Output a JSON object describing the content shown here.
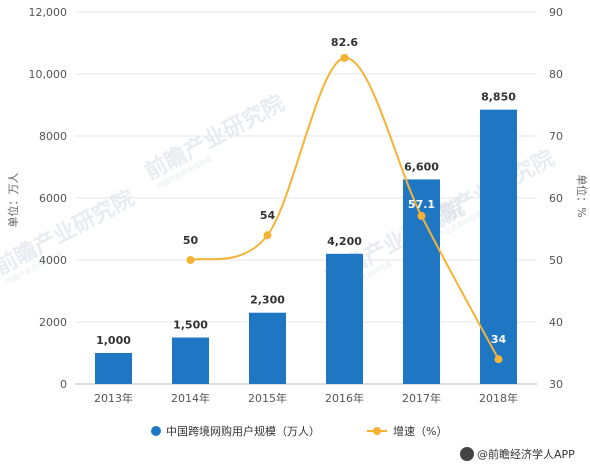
{
  "chart_data": {
    "type": "bar",
    "categories": [
      "2013年",
      "2014年",
      "2015年",
      "2016年",
      "2017年",
      "2018年"
    ],
    "series": [
      {
        "name": "中国跨境网购用户规模（万人）",
        "type": "bar",
        "axis": "left",
        "color": "#1f77c4",
        "values": [
          1000,
          1500,
          2300,
          4200,
          6600,
          8850
        ],
        "labels": [
          "1,000",
          "1,500",
          "2,300",
          "4,200",
          "6,600",
          "8,850"
        ]
      },
      {
        "name": "增速（%）",
        "type": "line",
        "axis": "right",
        "color": "#f5b335",
        "values": [
          null,
          50,
          54,
          82.6,
          57.1,
          34
        ],
        "labels": [
          "",
          "50",
          "54",
          "82.6",
          "57.1",
          "34"
        ]
      }
    ],
    "ylabel": "单位：万人",
    "y2label": "单位：%",
    "ylim": [
      0,
      12000
    ],
    "y2lim": [
      30,
      90
    ],
    "yticks": [
      "0",
      "2000",
      "4000",
      "6000",
      "8000",
      "10,000",
      "12,000"
    ],
    "y2ticks": [
      "30",
      "40",
      "50",
      "60",
      "70",
      "80",
      "90"
    ],
    "grid": true,
    "legend": "bottom"
  },
  "watermark": {
    "text": "前瞻产业研究院",
    "sub": "中国产业咨询领导者"
  },
  "source": "@前瞻经济学人APP"
}
